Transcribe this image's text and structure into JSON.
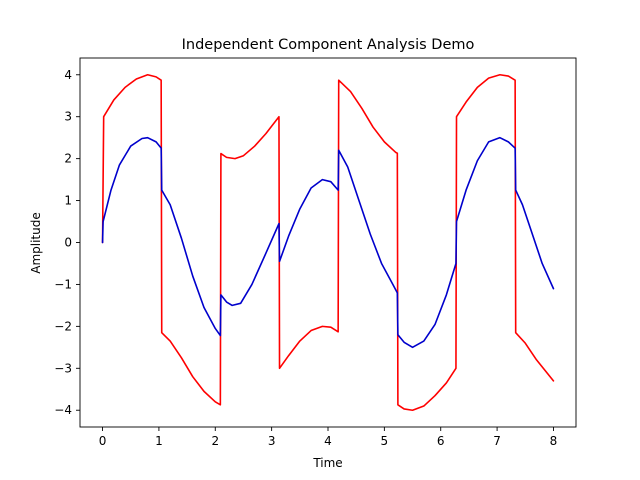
{
  "chart_data": {
    "type": "line",
    "title": "Independent Component Analysis Demo",
    "xlabel": "Time",
    "ylabel": "Amplitude",
    "xlim": [
      -0.4,
      8.4
    ],
    "ylim": [
      -4.4,
      4.4
    ],
    "xticks": [
      0,
      1,
      2,
      3,
      4,
      5,
      6,
      7,
      8
    ],
    "yticks": [
      -4,
      -3,
      -2,
      -1,
      0,
      1,
      2,
      3,
      4
    ],
    "grid": false,
    "series": [
      {
        "color": "#ff0000",
        "points": [
          [
            0,
            0
          ],
          [
            0.02,
            3.0
          ],
          [
            0.2,
            3.4
          ],
          [
            0.4,
            3.7
          ],
          [
            0.6,
            3.9
          ],
          [
            0.8,
            4.0
          ],
          [
            0.95,
            3.95
          ],
          [
            1.04,
            3.87
          ],
          [
            1.05,
            -2.15
          ],
          [
            1.2,
            -2.35
          ],
          [
            1.4,
            -2.75
          ],
          [
            1.6,
            -3.2
          ],
          [
            1.8,
            -3.55
          ],
          [
            2.0,
            -3.8
          ],
          [
            2.09,
            -3.87
          ],
          [
            2.1,
            2.12
          ],
          [
            2.2,
            2.03
          ],
          [
            2.35,
            2.0
          ],
          [
            2.5,
            2.07
          ],
          [
            2.7,
            2.3
          ],
          [
            2.9,
            2.6
          ],
          [
            3.13,
            3.0
          ],
          [
            3.14,
            -3.0
          ],
          [
            3.3,
            -2.7
          ],
          [
            3.5,
            -2.35
          ],
          [
            3.7,
            -2.1
          ],
          [
            3.9,
            -2.0
          ],
          [
            4.05,
            -2.02
          ],
          [
            4.18,
            -2.13
          ],
          [
            4.19,
            3.87
          ],
          [
            4.4,
            3.6
          ],
          [
            4.6,
            3.2
          ],
          [
            4.8,
            2.75
          ],
          [
            5.0,
            2.4
          ],
          [
            5.2,
            2.15
          ],
          [
            5.23,
            2.13
          ],
          [
            5.24,
            -3.87
          ],
          [
            5.35,
            -3.97
          ],
          [
            5.5,
            -4.0
          ],
          [
            5.7,
            -3.9
          ],
          [
            5.9,
            -3.65
          ],
          [
            6.1,
            -3.35
          ],
          [
            6.27,
            -3.0
          ],
          [
            6.28,
            3.0
          ],
          [
            6.45,
            3.35
          ],
          [
            6.65,
            3.7
          ],
          [
            6.85,
            3.92
          ],
          [
            7.05,
            4.0
          ],
          [
            7.2,
            3.97
          ],
          [
            7.32,
            3.87
          ],
          [
            7.33,
            -2.15
          ],
          [
            7.5,
            -2.4
          ],
          [
            7.7,
            -2.8
          ],
          [
            7.85,
            -3.05
          ],
          [
            8.0,
            -3.3
          ]
        ]
      },
      {
        "color": "#0000cc",
        "points": [
          [
            0,
            0
          ],
          [
            0.01,
            0.5
          ],
          [
            0.15,
            1.25
          ],
          [
            0.3,
            1.85
          ],
          [
            0.5,
            2.3
          ],
          [
            0.7,
            2.48
          ],
          [
            0.8,
            2.5
          ],
          [
            0.95,
            2.4
          ],
          [
            1.04,
            2.25
          ],
          [
            1.05,
            1.25
          ],
          [
            1.2,
            0.9
          ],
          [
            1.4,
            0.1
          ],
          [
            1.6,
            -0.8
          ],
          [
            1.8,
            -1.55
          ],
          [
            2.0,
            -2.05
          ],
          [
            2.09,
            -2.22
          ],
          [
            2.1,
            -1.25
          ],
          [
            2.2,
            -1.42
          ],
          [
            2.3,
            -1.5
          ],
          [
            2.45,
            -1.45
          ],
          [
            2.65,
            -1.0
          ],
          [
            2.9,
            -0.25
          ],
          [
            3.13,
            0.45
          ],
          [
            3.14,
            -0.45
          ],
          [
            3.3,
            0.15
          ],
          [
            3.5,
            0.8
          ],
          [
            3.7,
            1.3
          ],
          [
            3.9,
            1.5
          ],
          [
            4.05,
            1.45
          ],
          [
            4.18,
            1.25
          ],
          [
            4.19,
            2.2
          ],
          [
            4.35,
            1.8
          ],
          [
            4.55,
            1.0
          ],
          [
            4.75,
            0.2
          ],
          [
            4.95,
            -0.5
          ],
          [
            5.15,
            -1.0
          ],
          [
            5.23,
            -1.2
          ],
          [
            5.24,
            -2.2
          ],
          [
            5.35,
            -2.38
          ],
          [
            5.5,
            -2.5
          ],
          [
            5.7,
            -2.35
          ],
          [
            5.9,
            -1.95
          ],
          [
            6.1,
            -1.25
          ],
          [
            6.27,
            -0.5
          ],
          [
            6.28,
            0.5
          ],
          [
            6.45,
            1.25
          ],
          [
            6.65,
            1.95
          ],
          [
            6.85,
            2.4
          ],
          [
            7.05,
            2.5
          ],
          [
            7.2,
            2.4
          ],
          [
            7.32,
            2.25
          ],
          [
            7.33,
            1.25
          ],
          [
            7.45,
            0.9
          ],
          [
            7.6,
            0.3
          ],
          [
            7.8,
            -0.5
          ],
          [
            8.0,
            -1.1
          ]
        ]
      }
    ]
  }
}
